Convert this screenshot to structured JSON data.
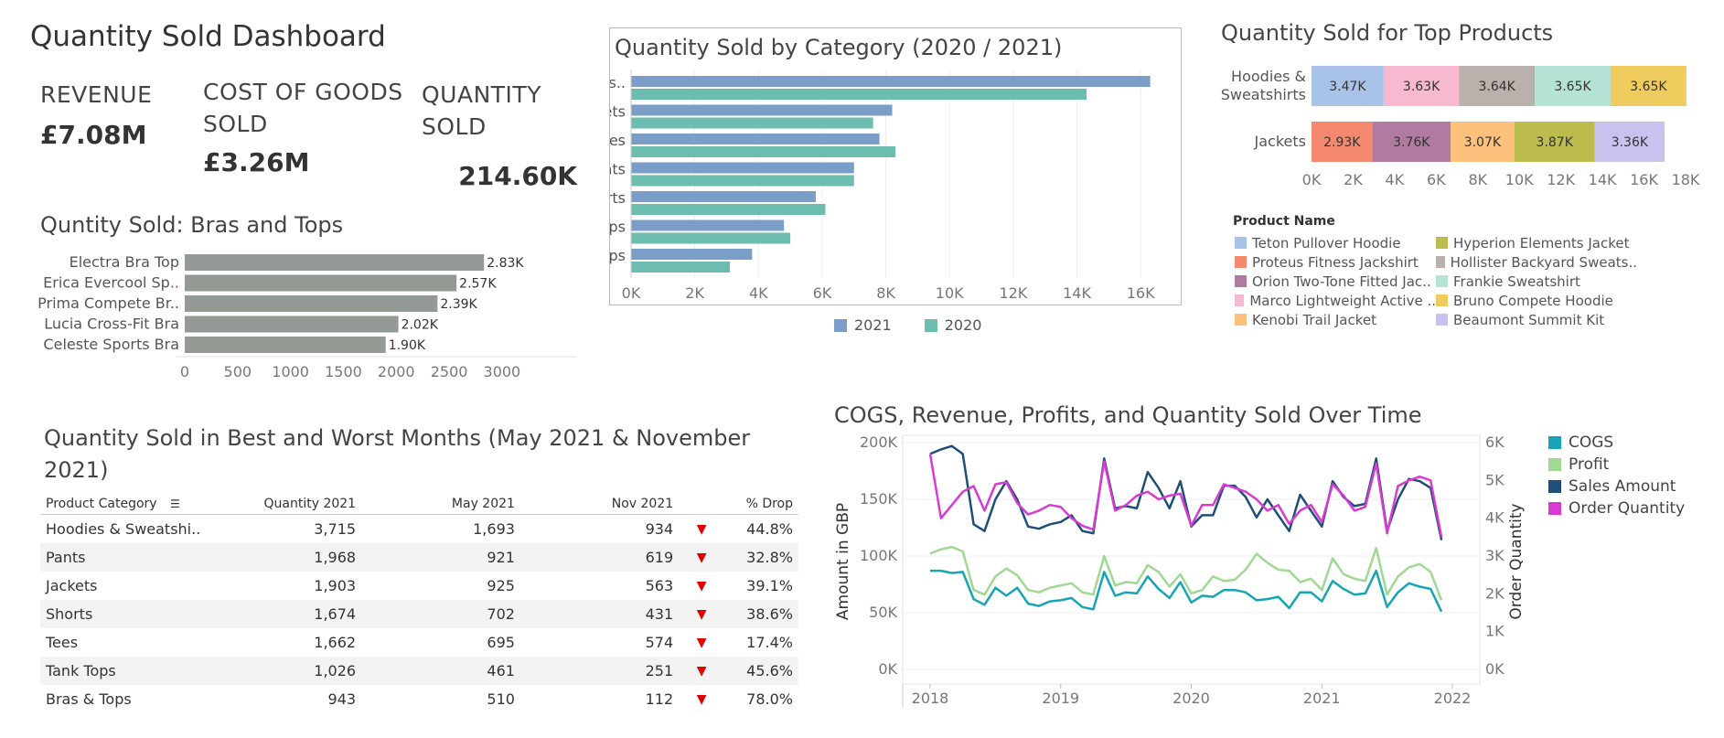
{
  "dashboard": {
    "title": "Quantity Sold Dashboard"
  },
  "kpis": [
    {
      "label_lines": [
        "REVENUE"
      ],
      "value": "£7.08M"
    },
    {
      "label_lines": [
        "COST OF GOODS",
        "SOLD"
      ],
      "value": "£3.26M"
    },
    {
      "label_lines": [
        "QUANTITY",
        "SOLD"
      ],
      "value": "214.60K"
    }
  ],
  "chart_data": [
    {
      "id": "bras_tops",
      "type": "bar",
      "orientation": "horizontal",
      "title": "Quntity Sold: Bras and Tops",
      "categories": [
        "Electra Bra Top",
        "Erica Evercool Sp..",
        "Prima Compete Br..",
        "Lucia Cross-Fit Bra",
        "Celeste Sports Bra"
      ],
      "values": [
        2830,
        2570,
        2390,
        2020,
        1900
      ],
      "value_labels": [
        "2.83K",
        "2.57K",
        "2.39K",
        "2.02K",
        "1.90K"
      ],
      "xlim": [
        0,
        3200
      ],
      "ticks": [
        0,
        500,
        1000,
        1500,
        2000,
        2500,
        3000
      ],
      "tick_labels": [
        "0",
        "500",
        "1000",
        "1500",
        "2000",
        "2500",
        "3000"
      ],
      "color": "#939a93"
    },
    {
      "id": "by_category",
      "type": "bar",
      "orientation": "horizontal",
      "title": "Quantity Sold by Category  (2020 / 2021)",
      "categories": [
        "Hoodies & Sweats..",
        "Jackets",
        "Tees",
        "Pants",
        "Shorts",
        "Tank Tops",
        "Bras & Tops"
      ],
      "series": [
        {
          "name": "2021",
          "color": "#7b9ec9",
          "values": [
            16300,
            8200,
            7800,
            7000,
            5800,
            4800,
            3800
          ]
        },
        {
          "name": "2020",
          "color": "#6cbcaf",
          "values": [
            14300,
            7600,
            8300,
            7000,
            6100,
            5000,
            3100
          ]
        }
      ],
      "xlim": [
        0,
        17000
      ],
      "ticks": [
        0,
        2000,
        4000,
        6000,
        8000,
        10000,
        12000,
        14000,
        16000
      ],
      "tick_labels": [
        "0K",
        "2K",
        "4K",
        "6K",
        "8K",
        "10K",
        "12K",
        "14K",
        "16K"
      ],
      "legend": "bottom",
      "grid": true
    },
    {
      "id": "top_products",
      "type": "bar",
      "orientation": "horizontal",
      "stacked": true,
      "title": "Quantity Sold for Top Products",
      "categories": [
        "Hoodies & Sweatshirts",
        "Jackets"
      ],
      "category_lines": [
        [
          "Hoodies &",
          "Sweatshirts"
        ],
        [
          "Jackets"
        ]
      ],
      "stacks": [
        [
          {
            "product": "Teton Pullover Hoodie",
            "value": 3470,
            "label": "3.47K"
          },
          {
            "product": "Marco Lightweight Active ..",
            "value": 3630,
            "label": "3.63K"
          },
          {
            "product": "Hollister Backyard Sweats..",
            "value": 3640,
            "label": "3.64K"
          },
          {
            "product": "Frankie  Sweatshirt",
            "value": 3650,
            "label": "3.65K"
          },
          {
            "product": "Bruno Compete Hoodie",
            "value": 3650,
            "label": "3.65K"
          }
        ],
        [
          {
            "product": "Proteus Fitness Jackshirt",
            "value": 2930,
            "label": "2.93K"
          },
          {
            "product": "Orion Two-Tone Fitted Jac..",
            "value": 3760,
            "label": "3.76K"
          },
          {
            "product": "Kenobi Trail Jacket",
            "value": 3070,
            "label": "3.07K"
          },
          {
            "product": "Hyperion Elements Jacket",
            "value": 3870,
            "label": "3.87K"
          },
          {
            "product": "Beaumont Summit Kit",
            "value": 3360,
            "label": "3.36K"
          }
        ]
      ],
      "xlim": [
        0,
        18000
      ],
      "ticks": [
        0,
        2000,
        4000,
        6000,
        8000,
        10000,
        12000,
        14000,
        16000,
        18000
      ],
      "tick_labels": [
        "0K",
        "2K",
        "4K",
        "6K",
        "8K",
        "10K",
        "12K",
        "14K",
        "16K",
        "18K"
      ],
      "legend_title": "Product Name",
      "legend": [
        {
          "name": "Teton Pullover Hoodie",
          "color": "#a9c3e8"
        },
        {
          "name": "Proteus Fitness Jackshirt",
          "color": "#f4896f"
        },
        {
          "name": "Orion Two-Tone Fitted Jac..",
          "color": "#b07aa1"
        },
        {
          "name": "Marco Lightweight Active ..",
          "color": "#f7b9cf"
        },
        {
          "name": "Kenobi Trail Jacket",
          "color": "#fcc27d"
        },
        {
          "name": "Hyperion Elements Jacket",
          "color": "#bcbd4e"
        },
        {
          "name": "Hollister Backyard Sweats..",
          "color": "#bab0ac"
        },
        {
          "name": "Frankie  Sweatshirt",
          "color": "#b5e3d6"
        },
        {
          "name": "Bruno Compete Hoodie",
          "color": "#efcc5d"
        },
        {
          "name": "Beaumont Summit Kit",
          "color": "#c9c2ee"
        }
      ]
    },
    {
      "id": "over_time",
      "type": "line",
      "title": "COGS, Revenue, Profits, and Quantity Sold Over Time",
      "x_tick_labels": [
        "2018",
        "2019",
        "2020",
        "2021",
        "2022"
      ],
      "x_range": [
        "2018-01",
        "2022-01"
      ],
      "ylabel_left": "Amount in GBP",
      "ylabel_right": "Order Quantity",
      "ylim_left": [
        0,
        200000
      ],
      "left_ticks": [
        0,
        50000,
        100000,
        150000,
        200000
      ],
      "left_tick_labels": [
        "0K",
        "50K",
        "100K",
        "150K",
        "200K"
      ],
      "ylim_right": [
        0,
        6000
      ],
      "right_ticks": [
        0,
        1000,
        2000,
        3000,
        4000,
        5000,
        6000
      ],
      "right_tick_labels": [
        "0K",
        "1K",
        "2K",
        "3K",
        "4K",
        "5K",
        "6K"
      ],
      "months": [
        "2018-01",
        "2018-02",
        "2018-03",
        "2018-04",
        "2018-05",
        "2018-06",
        "2018-07",
        "2018-08",
        "2018-09",
        "2018-10",
        "2018-11",
        "2018-12",
        "2019-01",
        "2019-02",
        "2019-03",
        "2019-04",
        "2019-05",
        "2019-06",
        "2019-07",
        "2019-08",
        "2019-09",
        "2019-10",
        "2019-11",
        "2019-12",
        "2020-01",
        "2020-02",
        "2020-03",
        "2020-04",
        "2020-05",
        "2020-06",
        "2020-07",
        "2020-08",
        "2020-09",
        "2020-10",
        "2020-11",
        "2020-12",
        "2021-01",
        "2021-02",
        "2021-03",
        "2021-04",
        "2021-05",
        "2021-06",
        "2021-07",
        "2021-08",
        "2021-09",
        "2021-10",
        "2021-11",
        "2021-12"
      ],
      "series": [
        {
          "name": "COGS",
          "color": "#17a5b3",
          "axis": "left",
          "values": [
            87000,
            87000,
            85000,
            86000,
            62000,
            57000,
            72000,
            65000,
            72000,
            58000,
            56000,
            60000,
            61000,
            63000,
            55000,
            53000,
            86000,
            65000,
            68000,
            67000,
            82000,
            71000,
            63000,
            77000,
            59000,
            65000,
            64000,
            70000,
            70000,
            68000,
            61000,
            62000,
            64000,
            54000,
            68000,
            68000,
            60000,
            78000,
            71000,
            66000,
            67000,
            87000,
            55000,
            68000,
            76000,
            73000,
            71000,
            51000
          ]
        },
        {
          "name": "Profit",
          "color": "#9fd993",
          "axis": "left",
          "values": [
            102000,
            106000,
            108000,
            104000,
            70000,
            66000,
            82000,
            89000,
            83000,
            70000,
            68000,
            72000,
            74000,
            76000,
            68000,
            66000,
            100000,
            74000,
            77000,
            76000,
            92000,
            86000,
            73000,
            84000,
            67000,
            70000,
            82000,
            78000,
            79000,
            88000,
            102000,
            94000,
            88000,
            87000,
            77000,
            80000,
            70000,
            98000,
            84000,
            80000,
            78000,
            107000,
            66000,
            82000,
            90000,
            93000,
            86000,
            61000
          ]
        },
        {
          "name": "Sales Amount",
          "color": "#1f4e79",
          "axis": "left",
          "values": [
            190000,
            194000,
            197000,
            190000,
            128000,
            122000,
            150000,
            166000,
            150000,
            126000,
            124000,
            128000,
            130000,
            136000,
            122000,
            120000,
            186000,
            142000,
            144000,
            142000,
            174000,
            160000,
            142000,
            166000,
            126000,
            136000,
            136000,
            162000,
            162000,
            152000,
            134000,
            150000,
            136000,
            122000,
            154000,
            140000,
            126000,
            166000,
            152000,
            144000,
            146000,
            186000,
            122000,
            150000,
            168000,
            166000,
            160000,
            114000
          ]
        },
        {
          "name": "Order Quantity",
          "color": "#d83bd2",
          "axis": "right",
          "values": [
            5700,
            4000,
            4350,
            4700,
            4850,
            4200,
            4900,
            4950,
            4400,
            4100,
            4200,
            4350,
            4300,
            4000,
            3800,
            3700,
            5500,
            4200,
            4350,
            4600,
            4700,
            4500,
            4600,
            4650,
            3800,
            4350,
            4350,
            4900,
            4800,
            4700,
            4500,
            4200,
            4350,
            3850,
            4200,
            4350,
            3900,
            4900,
            4600,
            4200,
            4300,
            5450,
            3600,
            4850,
            5000,
            5100,
            5000,
            3500
          ]
        }
      ],
      "legend": "right",
      "grid": true
    }
  ],
  "months_table": {
    "title_lines": [
      "Quantity Sold in Best and Worst Months (May 2021 & November",
      "2021)"
    ],
    "columns": [
      "Product Category",
      "Quantity 2021",
      "May 2021",
      "Nov 2021",
      "% Drop"
    ],
    "rows": [
      {
        "category": "Hoodies & Sweatshi..",
        "qty": "3,715",
        "may": "1,693",
        "nov": "934",
        "drop_icon": "▼",
        "drop": "44.8%"
      },
      {
        "category": "Pants",
        "qty": "1,968",
        "may": "921",
        "nov": "619",
        "drop_icon": "▼",
        "drop": "32.8%"
      },
      {
        "category": "Jackets",
        "qty": "1,903",
        "may": "925",
        "nov": "563",
        "drop_icon": "▼",
        "drop": "39.1%"
      },
      {
        "category": "Shorts",
        "qty": "1,674",
        "may": "702",
        "nov": "431",
        "drop_icon": "▼",
        "drop": "38.6%"
      },
      {
        "category": "Tees",
        "qty": "1,662",
        "may": "695",
        "nov": "574",
        "drop_icon": "▼",
        "drop": "17.4%"
      },
      {
        "category": "Tank Tops",
        "qty": "1,026",
        "may": "461",
        "nov": "251",
        "drop_icon": "▼",
        "drop": "45.6%"
      },
      {
        "category": "Bras & Tops",
        "qty": "943",
        "may": "510",
        "nov": "112",
        "drop_icon": "▼",
        "drop": "78.0%"
      }
    ]
  }
}
